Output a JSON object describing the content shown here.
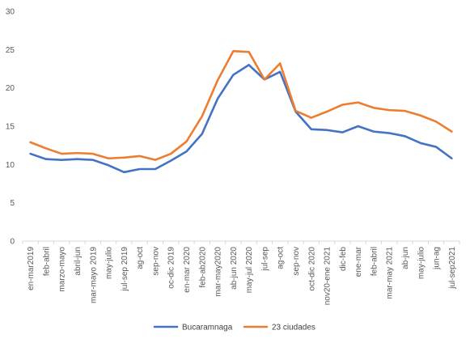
{
  "chart_data": {
    "type": "line",
    "title": "",
    "xlabel": "",
    "ylabel": "",
    "ylim": [
      0,
      30
    ],
    "yticks": [
      0,
      5,
      10,
      15,
      20,
      25,
      30
    ],
    "grid": false,
    "legend_position": "bottom",
    "categories": [
      "en-mar2019",
      "feb-abril",
      "marzo-mayo",
      "abril-jun",
      "mar-mayo 2019",
      "may-julio",
      "jul-sep 2019",
      "ag-oct",
      "sep-nov",
      "oc-dic 2019",
      "en-mar 2020",
      "feb-ab2020",
      "mar-may2020",
      "ab-jun 2020",
      "may-jul 2020",
      "jul-sep",
      "ag-oct",
      "sep-nov",
      "oct-dic 2020",
      "nov20-ene 2021",
      "dic-feb",
      "ene-mar",
      "feb-abril",
      "mar-may 2021",
      "ab-jun",
      "may-julio",
      "jun-ag",
      "jul-sep2021"
    ],
    "series": [
      {
        "name": "Bucaramnaga",
        "color": "#4472C4",
        "values": [
          11.4,
          10.7,
          10.6,
          10.7,
          10.6,
          9.9,
          9.0,
          9.4,
          9.4,
          10.5,
          11.7,
          14.0,
          18.6,
          21.7,
          23.0,
          21.1,
          22.1,
          16.9,
          14.6,
          14.5,
          14.2,
          15.0,
          14.3,
          14.1,
          13.7,
          12.8,
          12.3,
          10.8
        ]
      },
      {
        "name": "23 ciudades",
        "color": "#ED7D31",
        "values": [
          12.9,
          12.1,
          11.4,
          11.5,
          11.4,
          10.8,
          10.9,
          11.1,
          10.6,
          11.4,
          13.0,
          16.3,
          21.0,
          24.8,
          24.7,
          21.1,
          23.2,
          17.0,
          16.1,
          16.9,
          17.8,
          18.1,
          17.4,
          17.1,
          17.0,
          16.4,
          15.6,
          14.3
        ]
      }
    ]
  }
}
